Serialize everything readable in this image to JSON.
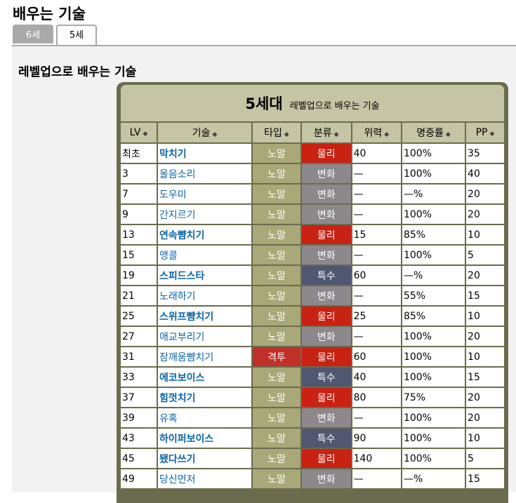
{
  "page_title": "배우는 기술",
  "tabs": [
    {
      "label": "6세대",
      "active": false
    },
    {
      "label": "5세대",
      "active": true
    }
  ],
  "section_title": "레벨업으로 배우는 기술",
  "table": {
    "caption": "5세대",
    "caption_sub": "레벨업으로 배우는 기술",
    "headers": [
      "LV",
      "기술",
      "타입",
      "분류",
      "위력",
      "명중률",
      "PP"
    ],
    "type_colors": {
      "노말": "#a8a878",
      "격투": "#c03028"
    },
    "category_colors": {
      "물리": "#c92112",
      "변화": "#8c888c",
      "특수": "#4f5870"
    },
    "rows": [
      {
        "lv": "최초",
        "move": "막치기",
        "bold": true,
        "type": "노말",
        "cat": "물리",
        "power": "40",
        "acc": "100%",
        "pp": "35"
      },
      {
        "lv": "3",
        "move": "울음소리",
        "bold": false,
        "type": "노말",
        "cat": "변화",
        "power": "—",
        "acc": "100%",
        "pp": "40"
      },
      {
        "lv": "7",
        "move": "도우미",
        "bold": false,
        "type": "노말",
        "cat": "변화",
        "power": "—",
        "acc": "—%",
        "pp": "20"
      },
      {
        "lv": "9",
        "move": "간지르기",
        "bold": false,
        "type": "노말",
        "cat": "변화",
        "power": "—",
        "acc": "100%",
        "pp": "20"
      },
      {
        "lv": "13",
        "move": "연속뺨치기",
        "bold": true,
        "type": "노말",
        "cat": "물리",
        "power": "15",
        "acc": "85%",
        "pp": "10"
      },
      {
        "lv": "15",
        "move": "앵콜",
        "bold": false,
        "type": "노말",
        "cat": "변화",
        "power": "—",
        "acc": "100%",
        "pp": "5"
      },
      {
        "lv": "19",
        "move": "스피드스타",
        "bold": true,
        "type": "노말",
        "cat": "특수",
        "power": "60",
        "acc": "—%",
        "pp": "20"
      },
      {
        "lv": "21",
        "move": "노래하기",
        "bold": false,
        "type": "노말",
        "cat": "변화",
        "power": "—",
        "acc": "55%",
        "pp": "15"
      },
      {
        "lv": "25",
        "move": "스위프뺨치기",
        "bold": true,
        "type": "노말",
        "cat": "물리",
        "power": "25",
        "acc": "85%",
        "pp": "10"
      },
      {
        "lv": "27",
        "move": "애교부리기",
        "bold": false,
        "type": "노말",
        "cat": "변화",
        "power": "—",
        "acc": "100%",
        "pp": "20"
      },
      {
        "lv": "31",
        "move": "잠깨움뺨치기",
        "bold": false,
        "type": "격투",
        "cat": "물리",
        "power": "60",
        "acc": "100%",
        "pp": "10"
      },
      {
        "lv": "33",
        "move": "에코보이스",
        "bold": true,
        "type": "노말",
        "cat": "특수",
        "power": "40",
        "acc": "100%",
        "pp": "15"
      },
      {
        "lv": "37",
        "move": "힘껏치기",
        "bold": true,
        "type": "노말",
        "cat": "물리",
        "power": "80",
        "acc": "75%",
        "pp": "20"
      },
      {
        "lv": "39",
        "move": "유혹",
        "bold": false,
        "type": "노말",
        "cat": "변화",
        "power": "—",
        "acc": "100%",
        "pp": "20"
      },
      {
        "lv": "43",
        "move": "하이퍼보이스",
        "bold": true,
        "type": "노말",
        "cat": "특수",
        "power": "90",
        "acc": "100%",
        "pp": "10"
      },
      {
        "lv": "45",
        "move": "됐다쓰기",
        "bold": true,
        "type": "노말",
        "cat": "물리",
        "power": "140",
        "acc": "100%",
        "pp": "5"
      },
      {
        "lv": "49",
        "move": "당신먼저",
        "bold": false,
        "type": "노말",
        "cat": "변화",
        "power": "—",
        "acc": "—%",
        "pp": "15"
      }
    ]
  }
}
